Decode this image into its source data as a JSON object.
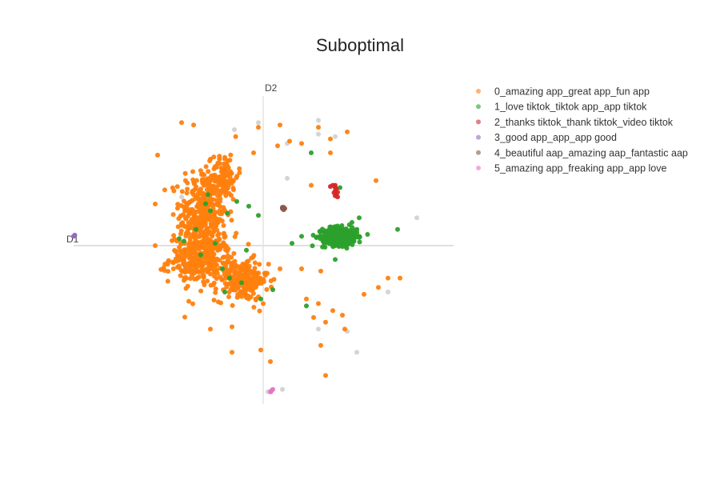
{
  "chart_data": {
    "type": "scatter",
    "title": "Suboptimal",
    "xlabel": "D1",
    "ylabel": "D2",
    "legend_position": "top-right",
    "grid": false,
    "noise_color": "#cfcfcf",
    "series": [
      {
        "name": "0_amazing app_great app_fun app",
        "color": "#ff7f0e",
        "clusters": [
          {
            "cx": -2.5,
            "cy": 1.3,
            "sx": 0.9,
            "sy": 1.9,
            "n": 380
          },
          {
            "cx": -2.6,
            "cy": -0.6,
            "sx": 1.2,
            "sy": 0.9,
            "n": 260
          },
          {
            "cx": -0.9,
            "cy": -1.5,
            "sx": 1.0,
            "sy": 0.8,
            "n": 220
          },
          {
            "cx": -1.6,
            "cy": 3.0,
            "sx": 0.5,
            "sy": 0.9,
            "n": 90
          }
        ],
        "points": [
          [
            -3.4,
            5.3
          ],
          [
            -2.9,
            5.2
          ],
          [
            -0.2,
            5.1
          ],
          [
            0.7,
            5.2
          ],
          [
            2.3,
            5.1
          ],
          [
            3.5,
            4.9
          ],
          [
            2.8,
            4.6
          ],
          [
            1.1,
            4.5
          ],
          [
            0.6,
            4.3
          ],
          [
            1.6,
            4.4
          ],
          [
            -4.4,
            3.9
          ],
          [
            -0.4,
            4.0
          ],
          [
            2.8,
            4.0
          ],
          [
            -4.1,
            2.4
          ],
          [
            2.0,
            2.6
          ],
          [
            4.7,
            2.8
          ],
          [
            -3.2,
            0.8
          ],
          [
            -3.6,
            0.2
          ],
          [
            -4.5,
            0.0
          ],
          [
            -3.3,
            -1.5
          ],
          [
            -3.1,
            -2.4
          ],
          [
            0.7,
            -1.0
          ],
          [
            1.6,
            -1.0
          ],
          [
            2.4,
            -1.1
          ],
          [
            1.8,
            -2.3
          ],
          [
            2.3,
            -2.5
          ],
          [
            2.9,
            -2.8
          ],
          [
            5.2,
            -1.4
          ],
          [
            5.7,
            -1.4
          ],
          [
            4.8,
            -1.8
          ],
          [
            4.2,
            -2.1
          ],
          [
            2.1,
            -3.1
          ],
          [
            2.6,
            -3.3
          ],
          [
            3.3,
            -3.0
          ],
          [
            0.0,
            -2.5
          ],
          [
            -1.3,
            -3.5
          ],
          [
            -2.2,
            -3.6
          ],
          [
            -1.3,
            -4.6
          ],
          [
            3.4,
            -3.6
          ],
          [
            2.4,
            -4.3
          ],
          [
            2.6,
            -5.6
          ],
          [
            0.3,
            -5.0
          ],
          [
            -0.1,
            -4.5
          ]
        ]
      },
      {
        "name": "1_love tiktok_tiktok app_app tiktok",
        "color": "#2ca02c",
        "clusters": [
          {
            "cx": 3.2,
            "cy": 0.4,
            "sx": 0.65,
            "sy": 0.35,
            "n": 420
          }
        ],
        "points": [
          [
            2.0,
            4.0
          ],
          [
            3.2,
            2.5
          ],
          [
            3.7,
            1.0
          ],
          [
            4.0,
            1.2
          ],
          [
            5.6,
            0.7
          ],
          [
            1.2,
            0.1
          ],
          [
            1.6,
            0.4
          ],
          [
            3.0,
            -0.6
          ],
          [
            -2.2,
            1.5
          ],
          [
            -2.4,
            1.8
          ],
          [
            -1.5,
            1.4
          ],
          [
            -0.6,
            1.7
          ],
          [
            -0.2,
            1.3
          ],
          [
            -3.3,
            0.2
          ],
          [
            -3.5,
            0.3
          ],
          [
            -2.8,
            0.7
          ],
          [
            -2.0,
            0.1
          ],
          [
            -2.6,
            -0.4
          ],
          [
            -1.7,
            -1.0
          ],
          [
            -0.7,
            -0.2
          ],
          [
            -0.9,
            -1.6
          ],
          [
            -1.6,
            -2.0
          ],
          [
            0.4,
            -1.9
          ],
          [
            -0.1,
            -2.3
          ],
          [
            1.8,
            -2.6
          ],
          [
            -1.4,
            -1.4
          ],
          [
            -2.3,
            2.2
          ],
          [
            -1.1,
            1.9
          ]
        ]
      },
      {
        "name": "2_thanks tiktok_thank tiktok_video tiktok",
        "color": "#d62728",
        "clusters": [],
        "points": [
          [
            3.0,
            2.6
          ],
          [
            3.0,
            2.5
          ],
          [
            3.05,
            2.45
          ],
          [
            3.0,
            2.35
          ],
          [
            3.1,
            2.3
          ],
          [
            2.95,
            2.28
          ],
          [
            3.05,
            2.2
          ],
          [
            3.0,
            2.15
          ],
          [
            3.1,
            2.1
          ],
          [
            2.8,
            2.55
          ],
          [
            2.9,
            2.6
          ]
        ]
      },
      {
        "name": "3_good app_app_app good",
        "color": "#9467bd",
        "clusters": [],
        "points": [
          [
            -7.9,
            0.4
          ],
          [
            -7.85,
            0.45
          ]
        ]
      },
      {
        "name": "4_beautiful aap_amazing aap_fantastic aap",
        "color": "#8c564b",
        "clusters": [],
        "points": [
          [
            0.8,
            1.6
          ],
          [
            0.85,
            1.65
          ],
          [
            0.9,
            1.6
          ],
          [
            0.85,
            1.55
          ],
          [
            0.8,
            1.65
          ]
        ]
      },
      {
        "name": "5_amazing app_freaking app_app love",
        "color": "#e377c2",
        "clusters": [],
        "points": [
          [
            0.3,
            -6.3
          ],
          [
            0.35,
            -6.25
          ],
          [
            0.4,
            -6.2
          ],
          [
            0.32,
            -6.3
          ]
        ]
      }
    ],
    "noise_points": [
      [
        -1.2,
        5.0
      ],
      [
        -0.2,
        5.3
      ],
      [
        2.3,
        5.4
      ],
      [
        2.3,
        4.8
      ],
      [
        1.0,
        4.4
      ],
      [
        1.0,
        2.9
      ],
      [
        -3.4,
        2.1
      ],
      [
        6.4,
        1.2
      ],
      [
        5.2,
        -2.0
      ],
      [
        2.3,
        -3.6
      ],
      [
        3.5,
        -3.7
      ],
      [
        3.9,
        -4.6
      ],
      [
        0.8,
        -6.2
      ],
      [
        0.2,
        -6.3
      ],
      [
        3.0,
        4.7
      ]
    ],
    "xlim": [
      -8.0,
      8.0
    ],
    "ylim": [
      -7.1,
      7.0
    ]
  }
}
